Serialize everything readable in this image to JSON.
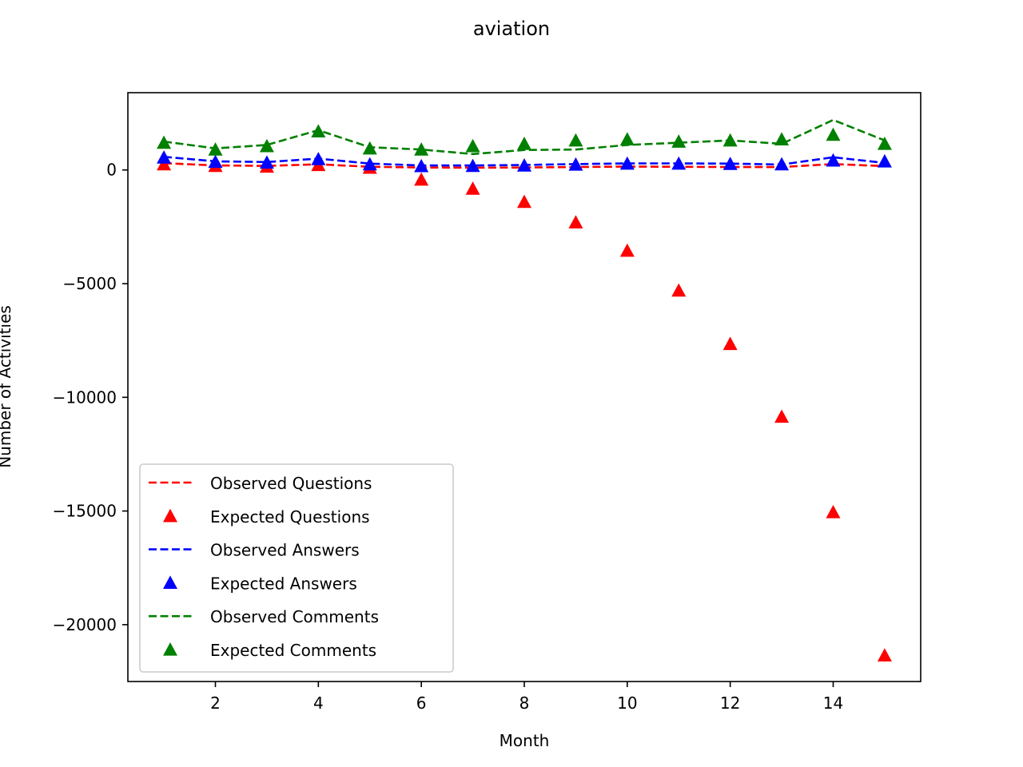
{
  "chart_data": {
    "type": "line",
    "title": "aviation",
    "xlabel": "Month",
    "ylabel": "Number of Activities",
    "xlim": [
      0.3,
      15.7
    ],
    "ylim": [
      -22500,
      3400
    ],
    "xticks": [
      2,
      4,
      6,
      8,
      10,
      12,
      14
    ],
    "yticks": [
      0,
      -5000,
      -10000,
      -15000,
      -20000
    ],
    "ytick_labels": [
      "0",
      "−5000",
      "−10000",
      "−15000",
      "−20000"
    ],
    "grid": false,
    "legend_position": "lower-left",
    "x": [
      1,
      2,
      3,
      4,
      5,
      6,
      7,
      8,
      9,
      10,
      11,
      12,
      13,
      14,
      15
    ],
    "series": [
      {
        "name": "Observed Questions",
        "style": "dashed-line",
        "color": "#ff0000",
        "values": [
          300,
          200,
          180,
          250,
          140,
          110,
          100,
          110,
          130,
          150,
          140,
          130,
          130,
          260,
          170
        ]
      },
      {
        "name": "Expected Questions",
        "style": "triangle-markers",
        "color": "#ff0000",
        "values": [
          250,
          180,
          150,
          220,
          100,
          -420,
          -820,
          -1400,
          -2300,
          -3550,
          -5300,
          -7650,
          -10850,
          -15050,
          -21350
        ]
      },
      {
        "name": "Observed Answers",
        "style": "dashed-line",
        "color": "#0000ff",
        "values": [
          580,
          380,
          350,
          500,
          280,
          200,
          200,
          220,
          260,
          290,
          290,
          280,
          240,
          560,
          310
        ]
      },
      {
        "name": "Expected Answers",
        "style": "triangle-markers",
        "color": "#0000ff",
        "values": [
          550,
          360,
          330,
          480,
          250,
          170,
          180,
          200,
          240,
          280,
          280,
          270,
          250,
          420,
          380
        ]
      },
      {
        "name": "Observed Comments",
        "style": "dashed-line",
        "color": "#008000",
        "values": [
          1250,
          950,
          1100,
          1750,
          1000,
          900,
          700,
          880,
          900,
          1100,
          1200,
          1300,
          1150,
          2200,
          1300
        ]
      },
      {
        "name": "Expected Comments",
        "style": "triangle-markers",
        "color": "#008000",
        "values": [
          1200,
          900,
          1050,
          1700,
          950,
          900,
          1050,
          1150,
          1300,
          1350,
          1250,
          1300,
          1350,
          1550,
          1150
        ]
      }
    ]
  }
}
